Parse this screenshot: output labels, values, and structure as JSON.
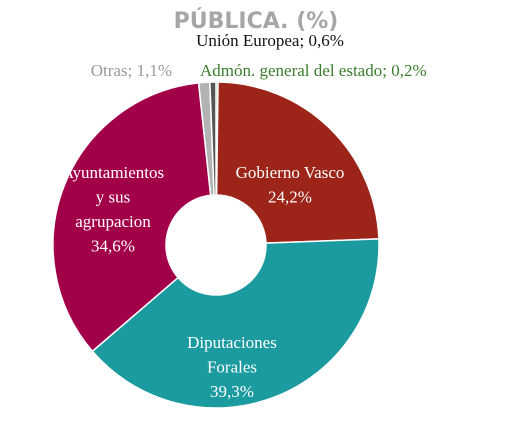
{
  "chart_data": {
    "type": "donut",
    "title": "PÚBLICA. (%)",
    "categories": [
      "Admón. general del estado",
      "Gobierno Vasco",
      "Diputaciones Forales",
      "Ayuntamientos y sus agrupacion",
      "Otras",
      "Unión Europea"
    ],
    "values": [
      0.2,
      24.2,
      39.3,
      34.6,
      1.1,
      0.6
    ],
    "value_labels": [
      "0,2%",
      "24,2%",
      "39,3%",
      "34,6%",
      "1,1%",
      "0,6%"
    ],
    "label_separator": "; ",
    "colors": [
      "#3a7d2c",
      "#9c2418",
      "#1b9aa0",
      "#a3004a",
      "#b3b3b3",
      "#555555"
    ]
  }
}
